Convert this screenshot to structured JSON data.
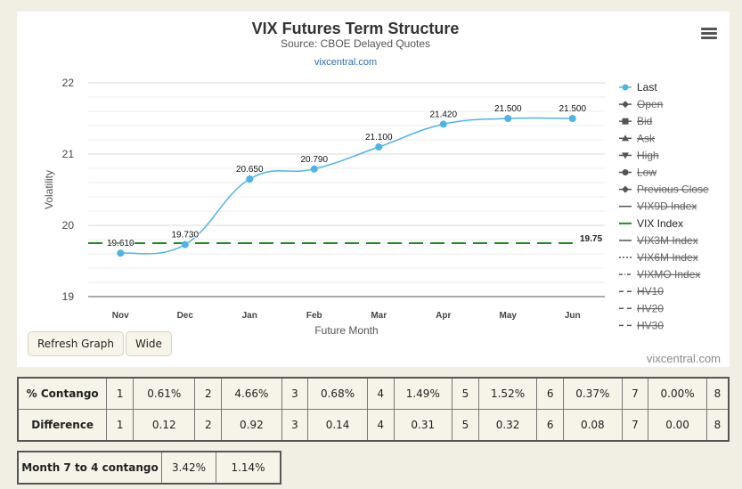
{
  "chart_data": {
    "type": "line",
    "title": "VIX Futures Term Structure",
    "subtitle": "Source: CBOE Delayed Quotes",
    "credit": "vixcentral.com",
    "xlabel": "Future Month",
    "ylabel": "Volatility",
    "categories": [
      "Nov",
      "Dec",
      "Jan",
      "Feb",
      "Mar",
      "Apr",
      "May",
      "Jun"
    ],
    "ylim": [
      19,
      22
    ],
    "yticks": [
      "19",
      "20",
      "21",
      "22"
    ],
    "grid": true,
    "series": [
      {
        "name": "Last",
        "values": [
          19.61,
          19.73,
          20.65,
          20.79,
          21.1,
          21.42,
          21.5,
          21.5
        ],
        "labels": [
          "19.610",
          "19.730",
          "20.650",
          "20.790",
          "21.100",
          "21.420",
          "21.500",
          "21.500"
        ],
        "color": "#4bb4e8"
      }
    ],
    "reference_line": {
      "name": "VIX Index",
      "value": 19.75,
      "label": "19.75",
      "color": "#1c8c1c"
    },
    "legend_position": "right",
    "legend": [
      {
        "name": "Last",
        "symbol": "circle-line",
        "active": true
      },
      {
        "name": "Open",
        "symbol": "diamond",
        "active": false
      },
      {
        "name": "Bid",
        "symbol": "square",
        "active": false
      },
      {
        "name": "Ask",
        "symbol": "triangle",
        "active": false
      },
      {
        "name": "High",
        "symbol": "triangle-down",
        "active": false
      },
      {
        "name": "Low",
        "symbol": "circle",
        "active": false
      },
      {
        "name": "Previous Close",
        "symbol": "diamond",
        "active": false
      },
      {
        "name": "VIX9D Index",
        "symbol": "solid",
        "active": false
      },
      {
        "name": "VIX Index",
        "symbol": "solid-green",
        "active": true
      },
      {
        "name": "VIX3M Index",
        "symbol": "solid",
        "active": false
      },
      {
        "name": "VIX6M Index",
        "symbol": "dotted",
        "active": false
      },
      {
        "name": "VIXMO Index",
        "symbol": "dashdot",
        "active": false
      },
      {
        "name": "HV10",
        "symbol": "dashed",
        "active": false
      },
      {
        "name": "HV20",
        "symbol": "dashed",
        "active": false
      },
      {
        "name": "HV30",
        "symbol": "dashed",
        "active": false
      }
    ]
  },
  "buttons": {
    "refresh": "Refresh Graph",
    "wide": "Wide"
  },
  "footer_brand": "vixcentral.com",
  "contango_table": {
    "rows": [
      {
        "label": "% Contango",
        "cells": [
          [
            "1",
            "0.61%"
          ],
          [
            "2",
            "4.66%"
          ],
          [
            "3",
            "0.68%"
          ],
          [
            "4",
            "1.49%"
          ],
          [
            "5",
            "1.52%"
          ],
          [
            "6",
            "0.37%"
          ],
          [
            "7",
            "0.00%"
          ],
          [
            "8",
            ""
          ]
        ]
      },
      {
        "label": "Difference",
        "cells": [
          [
            "1",
            "0.12"
          ],
          [
            "2",
            "0.92"
          ],
          [
            "3",
            "0.14"
          ],
          [
            "4",
            "0.31"
          ],
          [
            "5",
            "0.32"
          ],
          [
            "6",
            "0.08"
          ],
          [
            "7",
            "0.00"
          ],
          [
            "8",
            ""
          ]
        ]
      }
    ]
  },
  "month74": {
    "label": "Month 7 to 4 contango",
    "values": [
      "3.42%",
      "1.14%"
    ]
  }
}
